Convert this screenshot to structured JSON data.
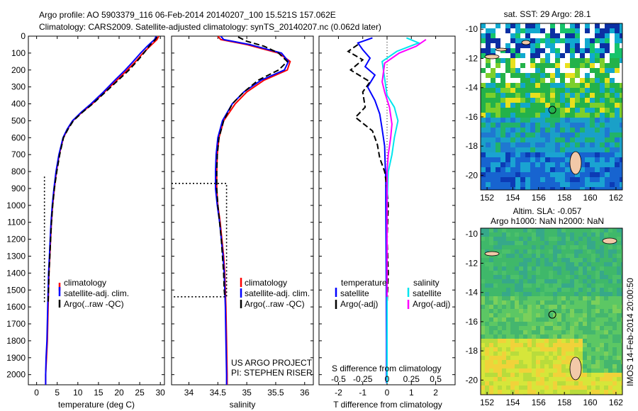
{
  "header": {
    "line1": "Argo profile: AO 5903379_116 06-Feb-2014 20140207_100 15.521S 157.062E",
    "line2": "Climatology: CARS2009. Satellite-adjusted climatology: synTS_20140207.nc (0.062d later)"
  },
  "credit": {
    "project": "US ARGO PROJECT",
    "pi": "PI: STEPHEN RISER",
    "stamp": "IMOS 14-Feb-2014 20:00:50"
  },
  "colors": {
    "climatology": "#ff0000",
    "satellite": "#0000ff",
    "argo": "#000000",
    "sal_satellite": "#00e5ee",
    "sal_argo": "#ff00ff"
  },
  "chart_data": [
    {
      "type": "line",
      "id": "temperature",
      "xlabel": "temperature (deg C)",
      "ylabel": "",
      "xlim": [
        -2,
        31
      ],
      "ylim": [
        2060,
        0
      ],
      "xticks": [
        0,
        5,
        10,
        15,
        20,
        25,
        30
      ],
      "yticks": [
        0,
        100,
        200,
        300,
        400,
        500,
        600,
        700,
        800,
        900,
        1000,
        1100,
        1200,
        1300,
        1400,
        1500,
        1600,
        1700,
        1800,
        1900,
        2000
      ],
      "legend": [
        "climatology",
        "satellite-adj. clim.",
        "Argo(..raw -QC)"
      ],
      "series": [
        {
          "name": "climatology",
          "color": "#ff0000",
          "style": "solid",
          "points": [
            [
              29.6,
              0
            ],
            [
              29.2,
              20
            ],
            [
              27.5,
              60
            ],
            [
              25.8,
              100
            ],
            [
              24.0,
              150
            ],
            [
              22.0,
              200
            ],
            [
              19.5,
              260
            ],
            [
              16.5,
              330
            ],
            [
              13.5,
              400
            ],
            [
              11.0,
              450
            ],
            [
              8.8,
              500
            ],
            [
              7.5,
              550
            ],
            [
              6.5,
              600
            ],
            [
              5.5,
              700
            ],
            [
              4.8,
              800
            ],
            [
              4.3,
              900
            ],
            [
              3.9,
              1000
            ],
            [
              3.6,
              1100
            ],
            [
              3.4,
              1200
            ],
            [
              3.2,
              1300
            ],
            [
              3.0,
              1400
            ],
            [
              2.9,
              1500
            ],
            [
              2.8,
              1600
            ],
            [
              2.6,
              1800
            ],
            [
              2.4,
              1900
            ],
            [
              2.2,
              2000
            ],
            [
              2.2,
              2060
            ]
          ]
        },
        {
          "name": "satellite-adj. clim.",
          "color": "#0000ff",
          "style": "solid",
          "points": [
            [
              29.0,
              0
            ],
            [
              28.6,
              20
            ],
            [
              26.8,
              60
            ],
            [
              25.2,
              100
            ],
            [
              23.4,
              150
            ],
            [
              21.5,
              200
            ],
            [
              19.0,
              260
            ],
            [
              16.2,
              330
            ],
            [
              13.2,
              400
            ],
            [
              10.8,
              450
            ],
            [
              8.7,
              500
            ],
            [
              7.4,
              550
            ],
            [
              6.4,
              600
            ],
            [
              5.4,
              700
            ],
            [
              4.7,
              800
            ],
            [
              4.2,
              900
            ],
            [
              3.8,
              1000
            ],
            [
              3.5,
              1100
            ],
            [
              3.3,
              1200
            ],
            [
              3.1,
              1300
            ],
            [
              2.9,
              1400
            ],
            [
              2.8,
              1500
            ],
            [
              2.7,
              1600
            ],
            [
              2.5,
              1800
            ],
            [
              2.3,
              1900
            ],
            [
              2.2,
              2000
            ],
            [
              2.2,
              2060
            ]
          ]
        },
        {
          "name": "Argo(..raw -QC)",
          "color": "#000000",
          "style": "dashed",
          "points": [
            [
              29.2,
              5
            ],
            [
              28.8,
              20
            ],
            [
              27.6,
              50
            ],
            [
              26.0,
              100
            ],
            [
              24.3,
              150
            ],
            [
              22.4,
              200
            ],
            [
              19.8,
              260
            ],
            [
              16.7,
              330
            ],
            [
              13.6,
              400
            ],
            [
              11.1,
              450
            ],
            [
              8.9,
              500
            ],
            [
              7.6,
              550
            ],
            [
              6.5,
              600
            ],
            [
              5.6,
              700
            ],
            [
              4.9,
              800
            ],
            [
              4.3,
              900
            ],
            [
              3.9,
              1000
            ],
            [
              3.6,
              1100
            ],
            [
              3.4,
              1200
            ],
            [
              3.2,
              1300
            ],
            [
              3.0,
              1400
            ],
            [
              2.9,
              1500
            ],
            [
              2.8,
              1580
            ]
          ]
        },
        {
          "name": "argo-levels",
          "color": "#000000",
          "style": "dotted",
          "points": [
            [
              1.9,
              830
            ],
            [
              1.9,
              1580
            ]
          ]
        }
      ]
    },
    {
      "type": "line",
      "id": "salinity",
      "xlabel": "salinity",
      "xlim": [
        33.7,
        36.15
      ],
      "ylim": [
        2060,
        0
      ],
      "xticks": [
        34,
        34.5,
        35,
        35.5,
        36
      ],
      "legend": [
        "climatology",
        "satellite-adj. clim.",
        "Argo(..raw -QC)"
      ],
      "series": [
        {
          "name": "climatology",
          "color": "#ff0000",
          "style": "solid",
          "points": [
            [
              34.5,
              0
            ],
            [
              34.55,
              20
            ],
            [
              35.0,
              50
            ],
            [
              35.55,
              100
            ],
            [
              35.75,
              150
            ],
            [
              35.7,
              200
            ],
            [
              35.3,
              260
            ],
            [
              35.0,
              330
            ],
            [
              34.8,
              400
            ],
            [
              34.6,
              500
            ],
            [
              34.52,
              600
            ],
            [
              34.49,
              700
            ],
            [
              34.48,
              800
            ],
            [
              34.48,
              900
            ],
            [
              34.5,
              1000
            ],
            [
              34.54,
              1100
            ],
            [
              34.57,
              1200
            ],
            [
              34.6,
              1300
            ],
            [
              34.62,
              1400
            ],
            [
              34.63,
              1500
            ],
            [
              34.64,
              1600
            ],
            [
              34.65,
              1800
            ],
            [
              34.66,
              2000
            ],
            [
              34.66,
              2060
            ]
          ]
        },
        {
          "name": "satellite-adj. clim.",
          "color": "#0000ff",
          "style": "solid",
          "points": [
            [
              34.55,
              0
            ],
            [
              34.6,
              20
            ],
            [
              35.05,
              50
            ],
            [
              35.6,
              100
            ],
            [
              35.72,
              150
            ],
            [
              35.65,
              200
            ],
            [
              35.25,
              260
            ],
            [
              34.95,
              330
            ],
            [
              34.75,
              400
            ],
            [
              34.58,
              500
            ],
            [
              34.5,
              600
            ],
            [
              34.47,
              700
            ],
            [
              34.46,
              800
            ],
            [
              34.46,
              900
            ],
            [
              34.49,
              1000
            ],
            [
              34.53,
              1100
            ],
            [
              34.56,
              1200
            ],
            [
              34.59,
              1300
            ],
            [
              34.61,
              1400
            ],
            [
              34.62,
              1500
            ],
            [
              34.63,
              1600
            ],
            [
              34.64,
              1800
            ],
            [
              34.65,
              2000
            ],
            [
              34.65,
              2060
            ]
          ]
        },
        {
          "name": "Argo(..raw -QC)",
          "color": "#000000",
          "style": "dashed",
          "points": [
            [
              34.85,
              5
            ],
            [
              35.0,
              30
            ],
            [
              35.3,
              60
            ],
            [
              35.55,
              100
            ],
            [
              35.7,
              150
            ],
            [
              35.55,
              200
            ],
            [
              35.2,
              260
            ],
            [
              34.95,
              330
            ],
            [
              34.75,
              400
            ],
            [
              34.6,
              500
            ],
            [
              34.52,
              600
            ],
            [
              34.49,
              700
            ],
            [
              34.48,
              800
            ],
            [
              34.48,
              900
            ],
            [
              34.5,
              1000
            ],
            [
              34.53,
              1100
            ],
            [
              34.56,
              1200
            ],
            [
              34.58,
              1300
            ],
            [
              34.6,
              1400
            ],
            [
              34.61,
              1500
            ],
            [
              34.62,
              1540
            ]
          ]
        },
        {
          "name": "argo-levels",
          "color": "#000000",
          "style": "dotted",
          "points": [
            [
              33.7,
              870
            ],
            [
              34.65,
              870
            ],
            [
              34.65,
              1540
            ],
            [
              33.7,
              1540
            ]
          ]
        }
      ]
    },
    {
      "type": "line",
      "id": "difference",
      "xlabel": "T difference from climatology",
      "xlabel_top": "S difference from climatology",
      "xlim": [
        -2.8,
        2.8
      ],
      "ylim": [
        2060,
        0
      ],
      "xticks": [
        -2,
        -1,
        0,
        1,
        2
      ],
      "xtick_labels_top": [
        "-0.5",
        "-0.25",
        "0",
        "0.25",
        "0.5"
      ],
      "legend_temperature": [
        "temperature",
        "satellite",
        "Argo(-adj)"
      ],
      "legend_salinity": [
        "salinity",
        "satellite",
        "Argo(-adj)"
      ],
      "series": [
        {
          "name": "temperature satellite",
          "color": "#0000ff",
          "style": "solid",
          "points": [
            [
              -0.6,
              10
            ],
            [
              -1.2,
              40
            ],
            [
              -1.0,
              80
            ],
            [
              -0.7,
              130
            ],
            [
              -0.9,
              180
            ],
            [
              -0.5,
              230
            ],
            [
              -0.8,
              300
            ],
            [
              -0.5,
              380
            ],
            [
              -0.3,
              460
            ],
            [
              -0.2,
              550
            ],
            [
              -0.1,
              650
            ],
            [
              -0.08,
              750
            ],
            [
              -0.05,
              850
            ],
            [
              -0.05,
              1000
            ],
            [
              -0.04,
              1200
            ],
            [
              -0.03,
              1500
            ],
            [
              -0.02,
              1800
            ],
            [
              -0.02,
              2050
            ]
          ]
        },
        {
          "name": "temperature Argo(-adj)",
          "color": "#000000",
          "style": "dashed",
          "points": [
            [
              -1.2,
              50
            ],
            [
              -1.6,
              90
            ],
            [
              -1.0,
              140
            ],
            [
              -1.5,
              200
            ],
            [
              -0.7,
              270
            ],
            [
              -1.0,
              330
            ],
            [
              -0.9,
              420
            ],
            [
              -1.3,
              480
            ],
            [
              -0.6,
              560
            ],
            [
              -0.4,
              640
            ],
            [
              -0.3,
              720
            ],
            [
              -0.1,
              800
            ],
            [
              0.0,
              900
            ],
            [
              0.05,
              1000
            ],
            [
              0.0,
              1200
            ],
            [
              0.05,
              1400
            ],
            [
              0.0,
              1580
            ]
          ]
        },
        {
          "name": "salinity satellite",
          "color": "#00e5ee",
          "style": "solid",
          "points": [
            [
              0.8,
              10
            ],
            [
              1.3,
              40
            ],
            [
              0.4,
              90
            ],
            [
              -0.2,
              150
            ],
            [
              -0.1,
              250
            ],
            [
              0.0,
              350
            ],
            [
              0.3,
              420
            ],
            [
              0.45,
              500
            ],
            [
              0.3,
              600
            ],
            [
              0.2,
              700
            ],
            [
              0.05,
              800
            ],
            [
              0.0,
              1000
            ],
            [
              0.0,
              1500
            ],
            [
              0.0,
              2050
            ]
          ]
        },
        {
          "name": "salinity Argo(-adj)",
          "color": "#ff00ff",
          "style": "solid",
          "points": [
            [
              1.6,
              20
            ],
            [
              1.2,
              60
            ],
            [
              0.5,
              100
            ],
            [
              -0.1,
              160
            ],
            [
              -0.2,
              270
            ],
            [
              -0.1,
              330
            ],
            [
              0.1,
              420
            ],
            [
              0.2,
              520
            ],
            [
              0.15,
              600
            ],
            [
              0.05,
              700
            ],
            [
              0.0,
              800
            ],
            [
              0.0,
              1000
            ],
            [
              0.0,
              1540
            ]
          ]
        }
      ]
    },
    {
      "type": "heatmap",
      "id": "sst-map",
      "title": "sat. SST: 29 Argo: 28.1",
      "xticks": [
        152,
        154,
        156,
        158,
        160,
        162
      ],
      "yticks": [
        -10,
        -12,
        -14,
        -16,
        -18,
        -20
      ],
      "xlim": [
        151.5,
        162.5
      ],
      "ylim": [
        -21,
        -9.6
      ],
      "float_position": [
        157.062,
        -15.521
      ]
    },
    {
      "type": "heatmap",
      "id": "sla-map",
      "title": "Altim. SLA: -0.057",
      "subtitle": "Argo h1000: NaN h2000: NaN",
      "xticks": [
        152,
        154,
        156,
        158,
        160,
        162
      ],
      "yticks": [
        -10,
        -12,
        -14,
        -16,
        -18,
        -20
      ],
      "xlim": [
        151.5,
        162.5
      ],
      "ylim": [
        -21,
        -9.6
      ],
      "float_position": [
        157.062,
        -15.521
      ]
    }
  ]
}
